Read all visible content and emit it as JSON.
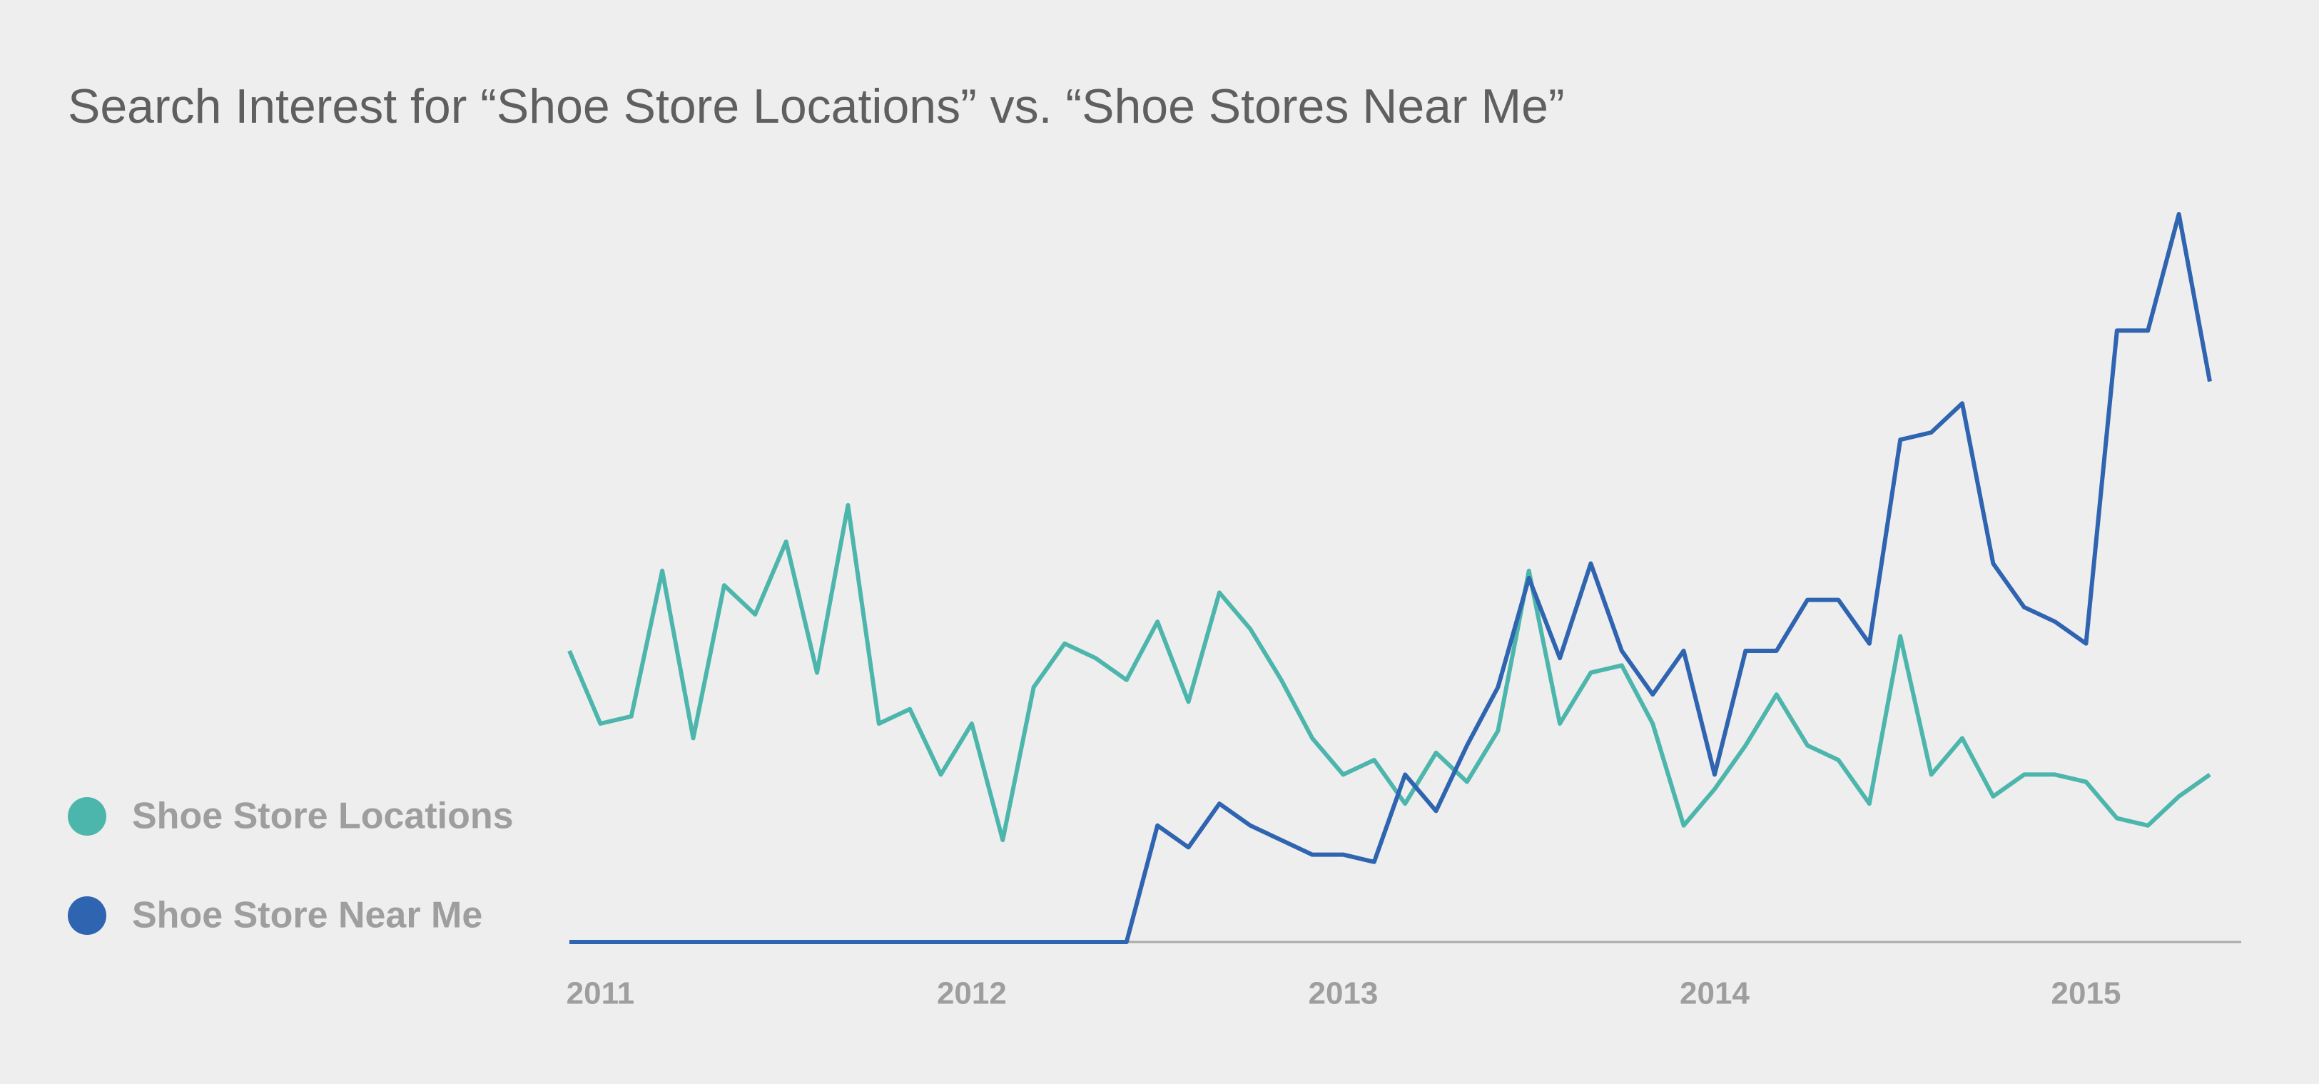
{
  "chart_data": {
    "type": "line",
    "title": "Search Interest for “Shoe Store Locations” vs. “Shoe Stores Near Me”",
    "categories": [
      null,
      "2011",
      null,
      null,
      null,
      null,
      null,
      null,
      null,
      null,
      null,
      null,
      null,
      "2012",
      null,
      null,
      null,
      null,
      null,
      null,
      null,
      null,
      null,
      null,
      null,
      "2013",
      null,
      null,
      null,
      null,
      null,
      null,
      null,
      null,
      null,
      null,
      null,
      "2014",
      null,
      null,
      null,
      null,
      null,
      null,
      null,
      null,
      null,
      null,
      null,
      "2015",
      null,
      null,
      null,
      null
    ],
    "series": [
      {
        "name": "Shoe Store Locations",
        "color": "#4db6ac",
        "values": [
          40,
          30,
          31,
          51,
          28,
          49,
          45,
          55,
          37,
          60,
          30,
          32,
          23,
          30,
          14,
          35,
          41,
          39,
          36,
          44,
          33,
          48,
          43,
          36,
          28,
          23,
          25,
          19,
          26,
          22,
          29,
          51,
          30,
          37,
          38,
          30,
          16,
          21,
          27,
          34,
          27,
          25,
          19,
          42,
          23,
          28,
          20,
          23,
          23,
          22,
          17,
          16,
          20,
          23
        ]
      },
      {
        "name": "Shoe Store Near Me",
        "color": "#2f64b0",
        "values": [
          0,
          0,
          0,
          0,
          0,
          0,
          0,
          0,
          0,
          0,
          0,
          0,
          0,
          0,
          0,
          0,
          0,
          0,
          0,
          16,
          13,
          19,
          16,
          14,
          12,
          12,
          11,
          23,
          18,
          27,
          35,
          50,
          39,
          52,
          40,
          34,
          40,
          23,
          40,
          40,
          47,
          47,
          41,
          69,
          70,
          74,
          52,
          46,
          44,
          41,
          84,
          84,
          100,
          77
        ]
      }
    ],
    "ylim": [
      0,
      100
    ]
  }
}
